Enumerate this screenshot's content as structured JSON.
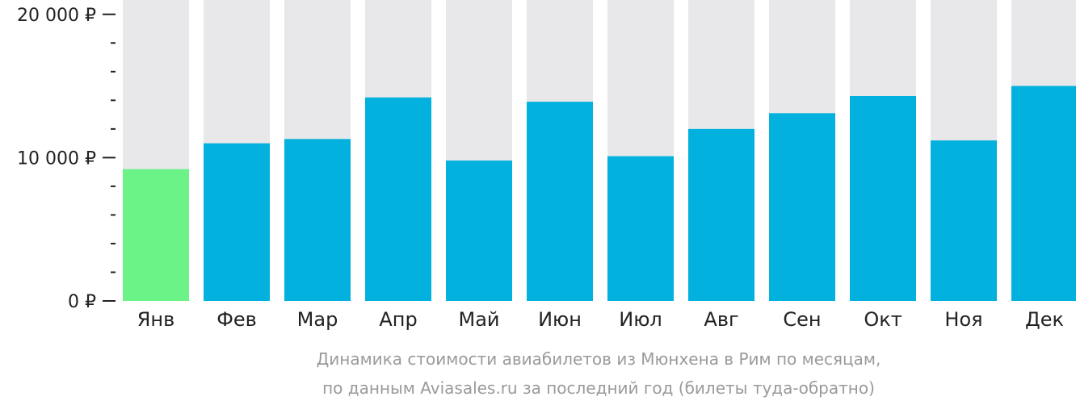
{
  "chart_data": {
    "type": "bar",
    "categories": [
      "Янв",
      "Фев",
      "Мар",
      "Апр",
      "Май",
      "Июн",
      "Июл",
      "Авг",
      "Сен",
      "Окт",
      "Ноя",
      "Дек"
    ],
    "values": [
      9200,
      11000,
      11300,
      14200,
      9800,
      13900,
      10100,
      12000,
      13100,
      14300,
      11200,
      15000
    ],
    "ylim": [
      0,
      21000
    ],
    "yticks": [
      {
        "value": 0,
        "label": "0 ₽"
      },
      {
        "value": 10000,
        "label": "10 000 ₽"
      },
      {
        "value": 20000,
        "label": "20 000 ₽"
      }
    ],
    "minor_tick_step": 2000,
    "highlight_index": 0,
    "colors": {
      "bar": "#02b1dd",
      "highlight": "#6cf387",
      "background_column": "#e8e8ea",
      "axis": "#222222"
    },
    "caption": [
      "Динамика стоимости авиабилетов из Мюнхена в Рим по месяцам,",
      "по данным Aviasales.ru за последний год (билеты туда-обратно)"
    ]
  }
}
